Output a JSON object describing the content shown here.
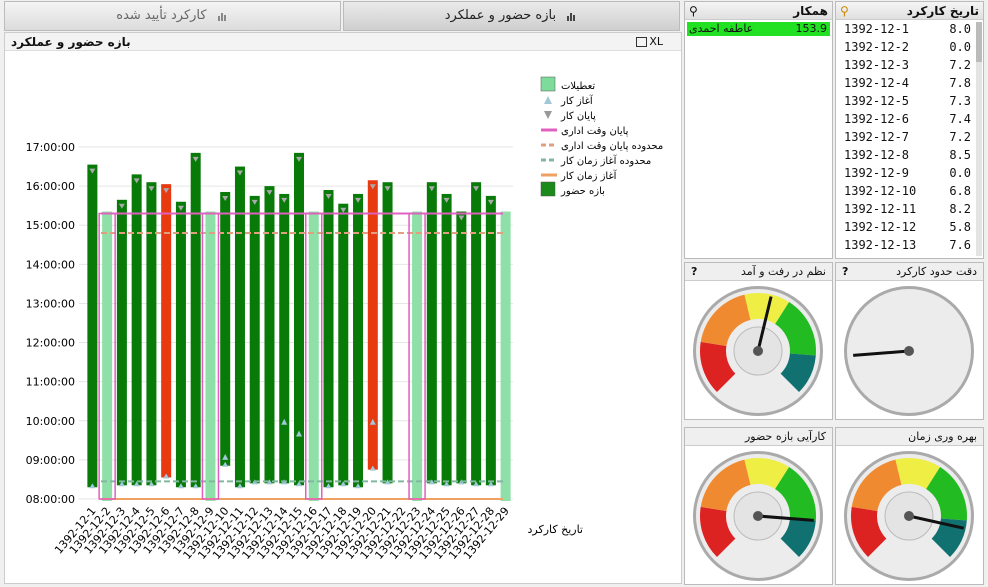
{
  "tabs": [
    {
      "label": "کارکرد تأیید شده",
      "active": false
    },
    {
      "label": "بازه حضور و عملکرد",
      "active": true
    }
  ],
  "chart_panel": {
    "title": "بازه حضور و عملکرد",
    "xl": "XL"
  },
  "colleague": {
    "title": "همکار",
    "name": "عاطفه احمدی",
    "value": "153.9"
  },
  "dates_list": {
    "title": "تاریخ کارکرد",
    "rows": [
      {
        "date": "1392-12-1",
        "value": "8.0"
      },
      {
        "date": "1392-12-2",
        "value": "0.0"
      },
      {
        "date": "1392-12-3",
        "value": "7.2"
      },
      {
        "date": "1392-12-4",
        "value": "7.8"
      },
      {
        "date": "1392-12-5",
        "value": "7.3"
      },
      {
        "date": "1392-12-6",
        "value": "7.4"
      },
      {
        "date": "1392-12-7",
        "value": "7.2"
      },
      {
        "date": "1392-12-8",
        "value": "8.5"
      },
      {
        "date": "1392-12-9",
        "value": "0.0"
      },
      {
        "date": "1392-12-10",
        "value": "6.8"
      },
      {
        "date": "1392-12-11",
        "value": "8.2"
      },
      {
        "date": "1392-12-12",
        "value": "5.8"
      },
      {
        "date": "1392-12-13",
        "value": "7.6"
      }
    ]
  },
  "gauges": [
    {
      "title": "دقت حدود کارکرد",
      "colored": false,
      "value": 0.15
    },
    {
      "title": "نظم در رفت و آمد",
      "colored": true,
      "value": 0.55
    },
    {
      "title": "بهره وری زمان",
      "colored": true,
      "value": 0.88
    },
    {
      "title": "کارآیی بازه حضور",
      "colored": true,
      "value": 0.85
    }
  ],
  "chart_data": {
    "type": "bar",
    "xlabel": "تاریخ کارکرد",
    "ylabel": "",
    "y_ticks": [
      "08:00:00",
      "09:00:00",
      "10:00:00",
      "11:00:00",
      "12:00:00",
      "13:00:00",
      "14:00:00",
      "15:00:00",
      "16:00:00",
      "17:00:00"
    ],
    "ylim": [
      8,
      17.5
    ],
    "categories": [
      "1392-12-1",
      "1392-12-2",
      "1392-12-3",
      "1392-12-4",
      "1392-12-5",
      "1392-12-6",
      "1392-12-7",
      "1392-12-8",
      "1392-12-9",
      "1392-12-10",
      "1392-12-11",
      "1392-12-12",
      "1392-12-13",
      "1392-12-14",
      "1392-12-15",
      "1392-12-16",
      "1392-12-17",
      "1392-12-18",
      "1392-12-19",
      "1392-12-20",
      "1392-12-21",
      "1392-12-22",
      "1392-12-23",
      "1392-12-24",
      "1392-12-25",
      "1392-12-26",
      "1392-12-27",
      "1392-12-28",
      "1392-12-29"
    ],
    "holidays": [
      "1392-12-2",
      "1392-12-9",
      "1392-12-16",
      "1392-12-23",
      "1392-12-29"
    ],
    "bars": [
      {
        "date": "1392-12-1",
        "start": 8.3,
        "end": 16.55,
        "late": false
      },
      {
        "date": "1392-12-3",
        "start": 8.35,
        "end": 15.65,
        "late": false
      },
      {
        "date": "1392-12-4",
        "start": 8.35,
        "end": 16.3,
        "late": false
      },
      {
        "date": "1392-12-5",
        "start": 8.35,
        "end": 16.1,
        "late": false
      },
      {
        "date": "1392-12-6",
        "start": 8.55,
        "end": 16.05,
        "late": true
      },
      {
        "date": "1392-12-7",
        "start": 8.3,
        "end": 15.6,
        "late": false
      },
      {
        "date": "1392-12-8",
        "start": 8.3,
        "end": 16.85,
        "late": false
      },
      {
        "date": "1392-12-10",
        "start": 8.85,
        "end": 15.85,
        "late": false
      },
      {
        "date": "1392-12-11",
        "start": 8.3,
        "end": 16.5,
        "late": false
      },
      {
        "date": "1392-12-12",
        "start": 8.4,
        "end": 15.75,
        "late": false
      },
      {
        "date": "1392-12-13",
        "start": 8.4,
        "end": 16.0,
        "late": false
      },
      {
        "date": "1392-12-14",
        "start": 8.4,
        "end": 15.8,
        "late": false
      },
      {
        "date": "1392-12-15",
        "start": 8.35,
        "end": 16.85,
        "late": false
      },
      {
        "date": "1392-12-17",
        "start": 8.3,
        "end": 15.9,
        "late": false
      },
      {
        "date": "1392-12-18",
        "start": 8.35,
        "end": 15.55,
        "late": false
      },
      {
        "date": "1392-12-19",
        "start": 8.3,
        "end": 15.8,
        "late": false
      },
      {
        "date": "1392-12-20",
        "start": 8.75,
        "end": 16.15,
        "late": true
      },
      {
        "date": "1392-12-21",
        "start": 8.4,
        "end": 16.1,
        "late": false
      },
      {
        "date": "1392-12-24",
        "start": 8.4,
        "end": 16.1,
        "late": false
      },
      {
        "date": "1392-12-25",
        "start": 8.35,
        "end": 15.8,
        "late": false
      },
      {
        "date": "1392-12-26",
        "start": 8.4,
        "end": 15.35,
        "late": false
      },
      {
        "date": "1392-12-27",
        "start": 8.35,
        "end": 16.1,
        "late": false
      },
      {
        "date": "1392-12-28",
        "start": 8.35,
        "end": 15.75,
        "late": false
      }
    ],
    "mid_markers": [
      {
        "date": "1392-12-10",
        "time": 9.05
      },
      {
        "date": "1392-12-14",
        "time": 9.95
      },
      {
        "date": "1392-12-15",
        "time": 9.65
      },
      {
        "date": "1392-12-20",
        "time": 9.95
      }
    ],
    "reference_lines": {
      "end_office": 15.3,
      "end_office_limit": 14.8,
      "start_limit": 8.45,
      "start": 8.0
    },
    "legend": [
      {
        "label": "تعطیلات",
        "kind": "square",
        "color": "#7ddc9a"
      },
      {
        "label": "آغاز کار",
        "kind": "tri-up",
        "color": "#a0c8d8"
      },
      {
        "label": "پایان کار",
        "kind": "tri-down",
        "color": "#999999"
      },
      {
        "label": "پایان وقت اداری",
        "kind": "line",
        "color": "#e060c0"
      },
      {
        "label": "محدوده پایان وقت اداری",
        "kind": "dash",
        "color": "#e0a080"
      },
      {
        "label": "محدوده آغاز زمان کار",
        "kind": "dash",
        "color": "#80b8a0"
      },
      {
        "label": "آغاز زمان کار",
        "kind": "line",
        "color": "#f0a060"
      },
      {
        "label": "بازه حضور",
        "kind": "square",
        "color": "#1a8a1a"
      }
    ],
    "legend_position": "top-right",
    "colors": {
      "present": "#087a08",
      "late": "#e83a10",
      "holiday": "#8fe0a8"
    }
  }
}
